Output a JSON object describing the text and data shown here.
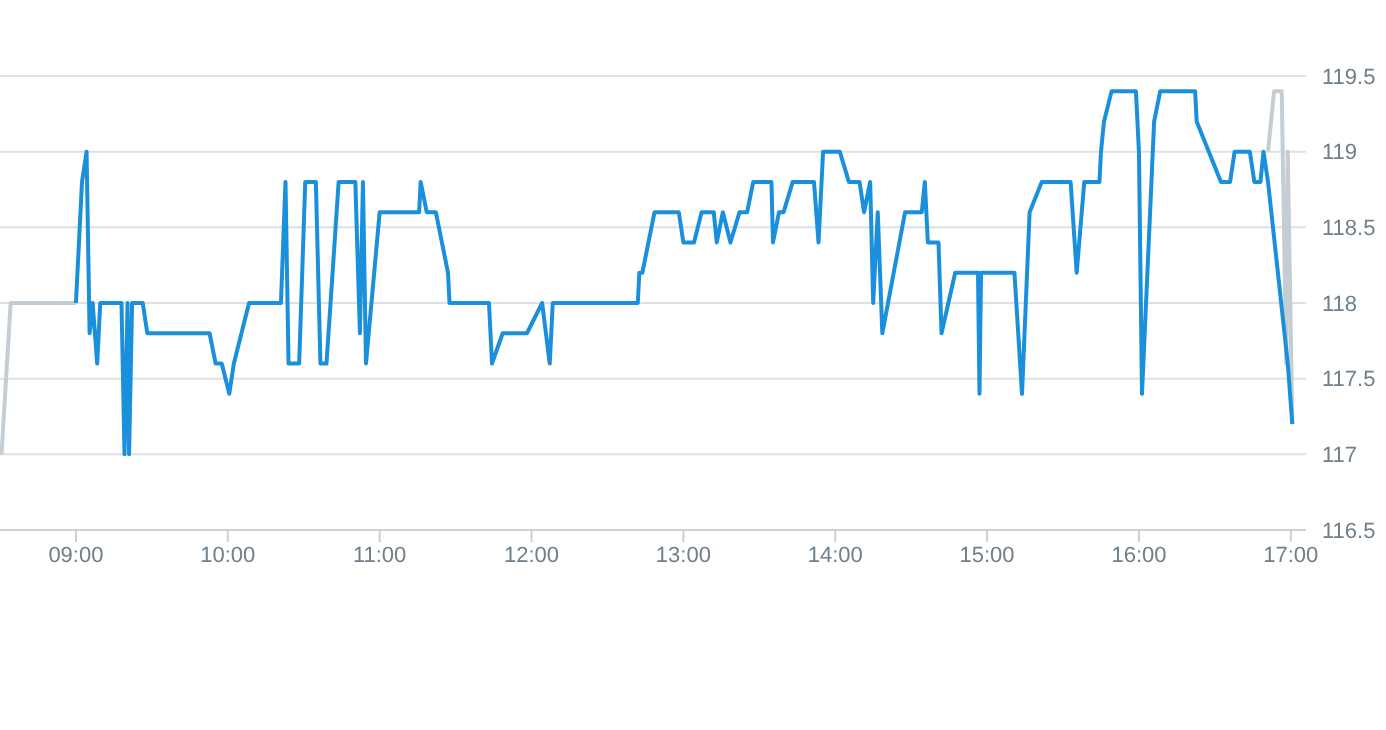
{
  "chart_data": {
    "type": "line",
    "xlim": [
      8.5,
      17.1
    ],
    "ylim": [
      116.5,
      119.5
    ],
    "xticks": [
      {
        "value": 9,
        "label": "09:00"
      },
      {
        "value": 10,
        "label": "10:00"
      },
      {
        "value": 11,
        "label": "11:00"
      },
      {
        "value": 12,
        "label": "12:00"
      },
      {
        "value": 13,
        "label": "13:00"
      },
      {
        "value": 14,
        "label": "14:00"
      },
      {
        "value": 15,
        "label": "15:00"
      },
      {
        "value": 16,
        "label": "16:00"
      },
      {
        "value": 17,
        "label": "17:00"
      }
    ],
    "yticks": [
      116.5,
      117,
      117.5,
      118,
      118.5,
      119,
      119.5
    ],
    "grid": "y",
    "legend": false,
    "marker": "none",
    "line_style": "solid",
    "series": [
      {
        "color": "#c5cdd4",
        "x": [
          8.51,
          8.57,
          9.0
        ],
        "values": [
          117,
          118,
          118
        ]
      },
      {
        "color": "#c5cdd4",
        "x": [
          16.85,
          16.89,
          16.94,
          16.97,
          16.98,
          17.01
        ],
        "values": [
          119,
          119.4,
          119.4,
          117.6,
          119,
          117.2
        ]
      },
      {
        "color": "#1a90dc",
        "x": [
          9.0,
          9.04,
          9.07,
          9.09,
          9.11,
          9.14,
          9.16,
          9.3,
          9.32,
          9.34,
          9.35,
          9.37,
          9.44,
          9.47,
          9.88,
          9.92,
          9.96,
          10.01,
          10.04,
          10.14,
          10.35,
          10.38,
          10.4,
          10.47,
          10.51,
          10.58,
          10.61,
          10.65,
          10.73,
          10.84,
          10.87,
          10.89,
          10.91,
          11.0,
          11.26,
          11.27,
          11.31,
          11.37,
          11.45,
          11.46,
          11.72,
          11.74,
          11.81,
          11.97,
          12.07,
          12.12,
          12.14,
          12.7,
          12.71,
          12.73,
          12.81,
          12.97,
          13.0,
          13.07,
          13.12,
          13.2,
          13.22,
          13.26,
          13.31,
          13.37,
          13.42,
          13.46,
          13.58,
          13.59,
          13.63,
          13.66,
          13.72,
          13.86,
          13.89,
          13.92,
          14.03,
          14.09,
          14.16,
          14.19,
          14.23,
          14.25,
          14.28,
          14.31,
          14.46,
          14.57,
          14.59,
          14.61,
          14.68,
          14.7,
          14.79,
          14.94,
          14.95,
          14.96,
          15.18,
          15.23,
          15.28,
          15.36,
          15.55,
          15.59,
          15.64,
          15.74,
          15.75,
          15.77,
          15.82,
          15.98,
          16.0,
          16.02,
          16.1,
          16.14,
          16.37,
          16.38,
          16.54,
          16.6,
          16.63,
          16.73,
          16.76,
          16.8,
          16.82,
          16.85,
          16.98,
          17.01
        ],
        "values": [
          118,
          118.8,
          119,
          117.8,
          118,
          117.6,
          118,
          118,
          117,
          118,
          117,
          118,
          118,
          117.8,
          117.8,
          117.6,
          117.6,
          117.4,
          117.6,
          118,
          118,
          118.8,
          117.6,
          117.6,
          118.8,
          118.8,
          117.6,
          117.6,
          118.8,
          118.8,
          117.8,
          118.8,
          117.6,
          118.6,
          118.6,
          118.8,
          118.6,
          118.6,
          118.2,
          118,
          118,
          117.6,
          117.8,
          117.8,
          118,
          117.6,
          118,
          118,
          118.2,
          118.2,
          118.6,
          118.6,
          118.4,
          118.4,
          118.6,
          118.6,
          118.4,
          118.6,
          118.4,
          118.6,
          118.6,
          118.8,
          118.8,
          118.4,
          118.6,
          118.6,
          118.8,
          118.8,
          118.4,
          119,
          119,
          118.8,
          118.8,
          118.6,
          118.8,
          118,
          118.6,
          117.8,
          118.6,
          118.6,
          118.8,
          118.4,
          118.4,
          117.8,
          118.2,
          118.2,
          117.4,
          118.2,
          118.2,
          117.4,
          118.6,
          118.8,
          118.8,
          118.2,
          118.8,
          118.8,
          119,
          119.2,
          119.4,
          119.4,
          119,
          117.4,
          119.2,
          119.4,
          119.4,
          119.2,
          118.8,
          118.8,
          119,
          119,
          118.8,
          118.8,
          119,
          118.8,
          117.6,
          117.2
        ]
      }
    ]
  }
}
